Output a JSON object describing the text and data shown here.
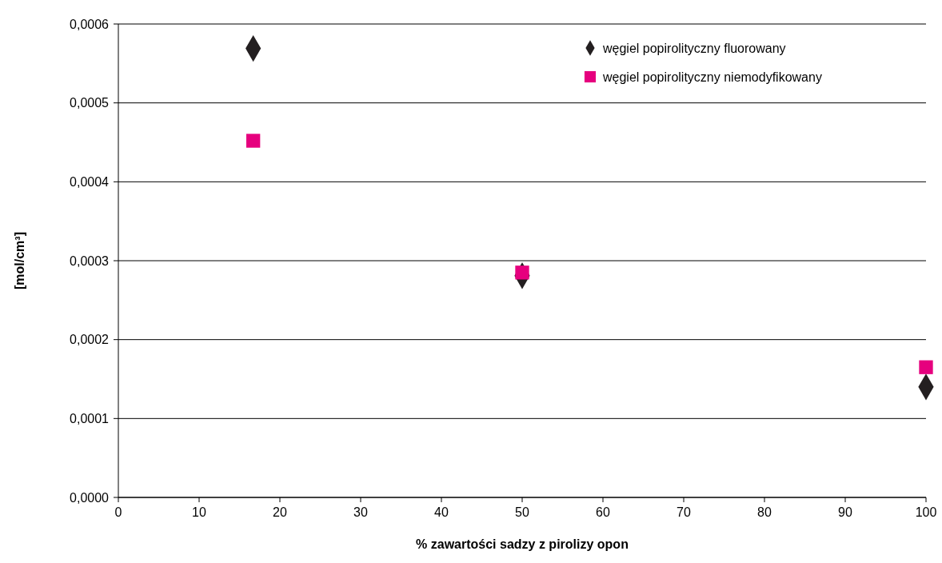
{
  "chart_data": {
    "type": "scatter",
    "xlabel": "% zawartości sadzy z pirolizy opon",
    "ylabel": "[mol/cm³]",
    "xlim": [
      0,
      100
    ],
    "xticks": [
      0,
      10,
      20,
      30,
      40,
      50,
      60,
      70,
      80,
      90,
      100
    ],
    "ylim": [
      0,
      0.0006
    ],
    "yticks": [
      {
        "value": 0,
        "label": "0,0000"
      },
      {
        "value": 0.0001,
        "label": "0,0001"
      },
      {
        "value": 0.0002,
        "label": "0,0002"
      },
      {
        "value": 0.0003,
        "label": "0,0003"
      },
      {
        "value": 0.0004,
        "label": "0,0004"
      },
      {
        "value": 0.0005,
        "label": "0,0005"
      },
      {
        "value": 0.0006,
        "label": "0,0006"
      }
    ],
    "grid": "y",
    "legend": "top right",
    "series": [
      {
        "name": "węgiel popirolityczny fluorowany",
        "color": "#231f20",
        "marker": "diamond",
        "x": [
          16.7,
          50,
          100
        ],
        "values": [
          0.000569,
          0.000281,
          0.00014
        ]
      },
      {
        "name": "węgiel popirolityczny niemodyfikowany",
        "color": "#e6007e",
        "marker": "square",
        "x": [
          16.7,
          50,
          100
        ],
        "values": [
          0.000452,
          0.000285,
          0.000165
        ]
      }
    ]
  }
}
